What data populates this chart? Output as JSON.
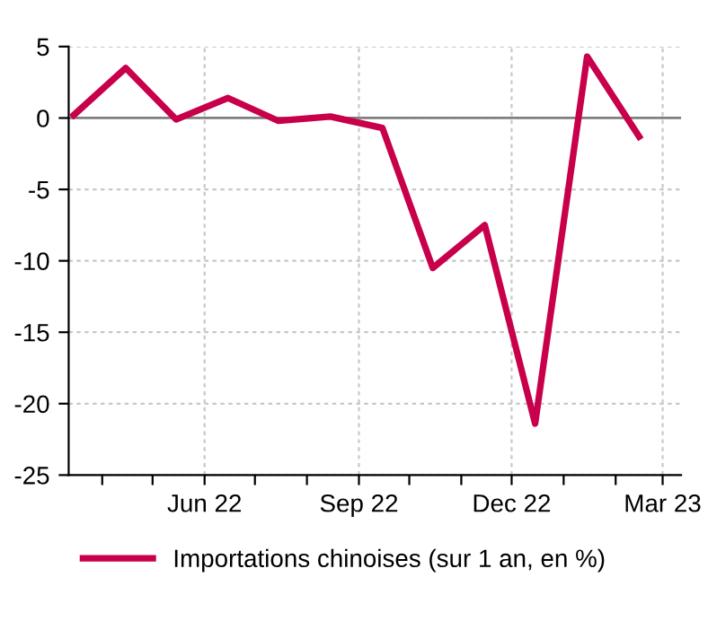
{
  "chart_data": {
    "type": "line",
    "x": [
      "2022-03-15",
      "2022-04-15",
      "2022-05-15",
      "2022-06-15",
      "2022-07-15",
      "2022-08-15",
      "2022-09-15",
      "2022-10-15",
      "2022-11-15",
      "2022-12-15",
      "2023-01-15",
      "2023-02-15"
    ],
    "series": [
      {
        "name": "Importations chinoises (sur 1 an, en %)",
        "color": "#c8004b",
        "values": [
          0.2,
          3.5,
          -0.1,
          1.4,
          -0.2,
          0.1,
          -0.7,
          -10.5,
          -7.5,
          -21.4,
          4.3,
          -1.3
        ]
      }
    ],
    "xlim": [
      "2022-03-12",
      "2023-03-12"
    ],
    "xticks": [
      {
        "value": "2022-04-01",
        "label": null
      },
      {
        "value": "2022-05-01",
        "label": null
      },
      {
        "value": "2022-06-01",
        "label": "Jun 22"
      },
      {
        "value": "2022-07-01",
        "label": null
      },
      {
        "value": "2022-08-01",
        "label": null
      },
      {
        "value": "2022-09-01",
        "label": "Sep 22"
      },
      {
        "value": "2022-10-01",
        "label": null
      },
      {
        "value": "2022-11-01",
        "label": null
      },
      {
        "value": "2022-12-01",
        "label": "Dec 22"
      },
      {
        "value": "2023-01-01",
        "label": null
      },
      {
        "value": "2023-02-01",
        "label": null
      },
      {
        "value": "2023-03-01",
        "label": "Mar 23"
      }
    ],
    "ylim": [
      -25,
      5
    ],
    "yticks": [
      -25,
      -20,
      -15,
      -10,
      -5,
      0,
      5
    ],
    "ref_lines": [
      {
        "axis": "y",
        "value": 0,
        "color": "#808080"
      }
    ],
    "grid": true,
    "legend": "bottom",
    "marker": "none",
    "line_style": "solid"
  }
}
